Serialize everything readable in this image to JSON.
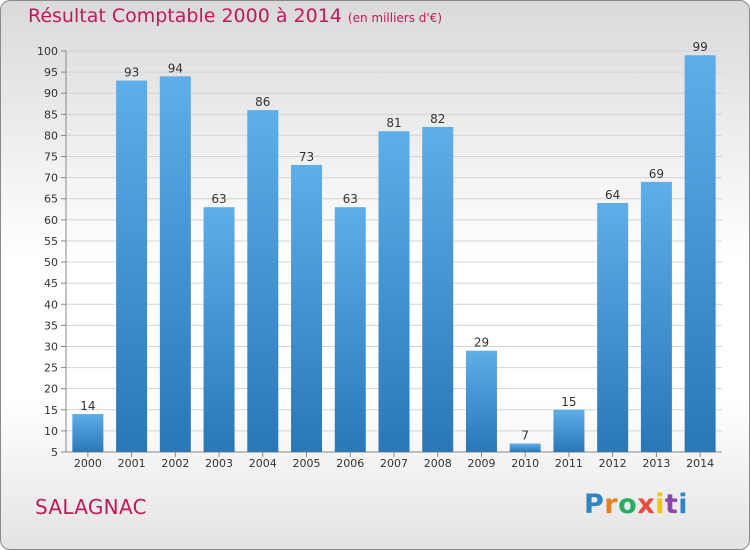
{
  "header": {
    "title": "Résultat Comptable 2000 à 2014",
    "subtitle": "(en milliers d'€)"
  },
  "commune": "SALAGNAC",
  "brand": {
    "letters": [
      {
        "char": "P",
        "color": "#2e86c1"
      },
      {
        "char": "r",
        "color": "#e67e22"
      },
      {
        "char": "o",
        "color": "#27ae60"
      },
      {
        "char": "x",
        "color": "#e74c3c"
      },
      {
        "char": "i",
        "color": "#f1c40f"
      },
      {
        "char": "t",
        "color": "#8e44ad"
      },
      {
        "char": "i",
        "color": "#2e86c1"
      }
    ]
  },
  "chart_data": {
    "type": "bar",
    "title": "Résultat Comptable 2000 à 2014",
    "ylabel": "en milliers d'€",
    "xlabel": "",
    "categories": [
      "2000",
      "2001",
      "2002",
      "2003",
      "2004",
      "2005",
      "2006",
      "2007",
      "2008",
      "2009",
      "2010",
      "2011",
      "2012",
      "2013",
      "2014"
    ],
    "values": [
      14,
      93,
      94,
      63,
      86,
      73,
      63,
      81,
      82,
      29,
      7,
      15,
      64,
      69,
      99
    ],
    "ylim": [
      5,
      100
    ],
    "yticks": [
      5,
      10,
      15,
      20,
      25,
      30,
      35,
      40,
      45,
      50,
      55,
      60,
      65,
      70,
      75,
      80,
      85,
      90,
      95,
      100
    ],
    "grid": true,
    "bar_color": "#3d8fd3"
  }
}
